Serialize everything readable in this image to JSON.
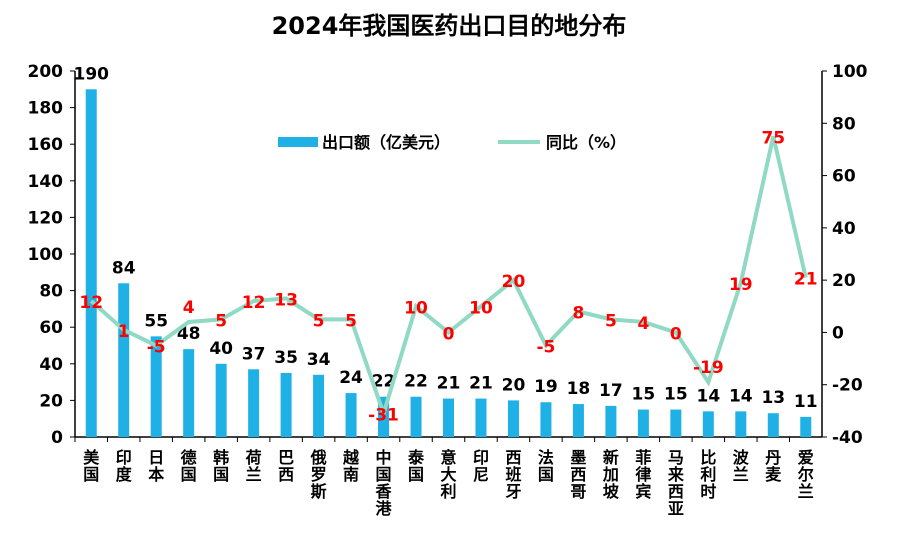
{
  "chart_data": {
    "type": "bar+line",
    "title": "2024年我国医药出口目的地分布",
    "categories": [
      "美国",
      "印度",
      "日本",
      "德国",
      "韩国",
      "荷兰",
      "巴西",
      "俄罗斯",
      "越南",
      "中国香港",
      "泰国",
      "意大利",
      "印尼",
      "西班牙",
      "法国",
      "墨西哥",
      "新加坡",
      "菲律宾",
      "马来西亚",
      "比利时",
      "波兰",
      "丹麦",
      "爱尔兰"
    ],
    "series": [
      {
        "name": "出口额（亿美元）",
        "type": "bar",
        "axis": "left",
        "color": "#1fb0e6",
        "values": [
          190,
          84,
          55,
          48,
          40,
          37,
          35,
          34,
          24,
          22,
          22,
          21,
          21,
          20,
          19,
          18,
          17,
          15,
          15,
          14,
          14,
          13,
          11
        ]
      },
      {
        "name": "同比（%）",
        "type": "line",
        "axis": "right",
        "color": "#8fd9c5",
        "label_color": "#ff0000",
        "values": [
          12,
          1,
          -5,
          4,
          5,
          12,
          13,
          5,
          5,
          -31,
          10,
          0,
          10,
          20,
          -5,
          8,
          5,
          4,
          0,
          -19,
          19,
          75,
          21
        ]
      }
    ],
    "ylim_left": [
      0,
      200
    ],
    "yticks_left": [
      0,
      20,
      40,
      60,
      80,
      100,
      120,
      140,
      160,
      180,
      200
    ],
    "ylim_right": [
      -40,
      100
    ],
    "yticks_right": [
      -40,
      -20,
      0,
      20,
      40,
      60,
      80,
      100
    ],
    "legend": "top-center",
    "grid": false
  }
}
